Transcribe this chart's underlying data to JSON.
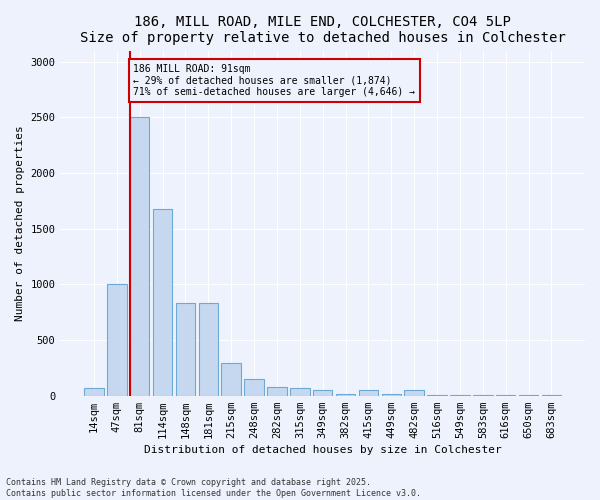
{
  "title_line1": "186, MILL ROAD, MILE END, COLCHESTER, CO4 5LP",
  "title_line2": "Size of property relative to detached houses in Colchester",
  "xlabel": "Distribution of detached houses by size in Colchester",
  "ylabel": "Number of detached properties",
  "bar_labels": [
    "14sqm",
    "47sqm",
    "81sqm",
    "114sqm",
    "148sqm",
    "181sqm",
    "215sqm",
    "248sqm",
    "282sqm",
    "315sqm",
    "349sqm",
    "382sqm",
    "415sqm",
    "449sqm",
    "482sqm",
    "516sqm",
    "549sqm",
    "583sqm",
    "616sqm",
    "650sqm",
    "683sqm"
  ],
  "bar_values": [
    65,
    1000,
    2500,
    1680,
    830,
    830,
    290,
    150,
    80,
    70,
    55,
    15,
    50,
    15,
    50,
    8,
    8,
    6,
    3,
    3,
    3
  ],
  "bar_color": "#c5d8f0",
  "bar_edgecolor": "#6aaad4",
  "vline_color": "#cc0000",
  "annotation_text": "186 MILL ROAD: 91sqm\n← 29% of detached houses are smaller (1,874)\n71% of semi-detached houses are larger (4,646) →",
  "annotation_box_edgecolor": "#cc0000",
  "ylim": [
    0,
    3100
  ],
  "yticks": [
    0,
    500,
    1000,
    1500,
    2000,
    2500,
    3000
  ],
  "background_color": "#eef2fc",
  "grid_color": "#ffffff",
  "footer_text": "Contains HM Land Registry data © Crown copyright and database right 2025.\nContains public sector information licensed under the Open Government Licence v3.0.",
  "title_fontsize": 10,
  "axis_label_fontsize": 8,
  "tick_fontsize": 7.5,
  "annotation_fontsize": 7,
  "footer_fontsize": 6
}
